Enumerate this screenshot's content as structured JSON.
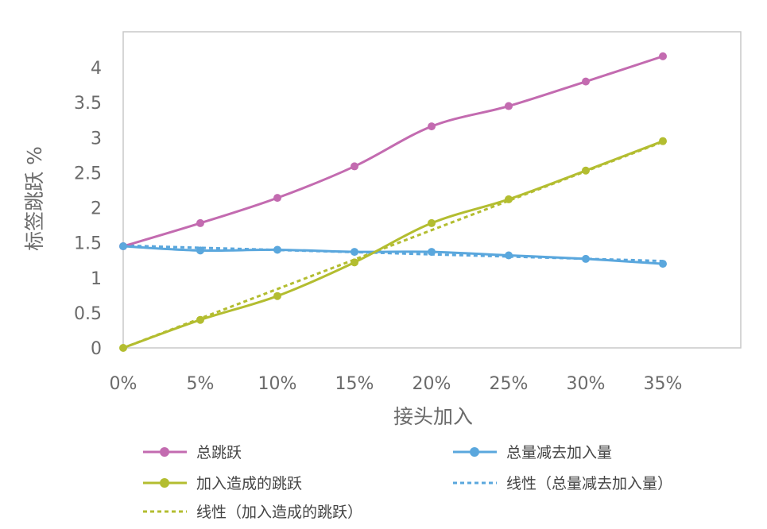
{
  "chart_data": {
    "type": "line",
    "title": "",
    "xlabel": "接头加入",
    "ylabel": "标签跳跃 %",
    "x": [
      "0%",
      "5%",
      "10%",
      "15%",
      "20%",
      "25%",
      "30%",
      "35%"
    ],
    "ylim": [
      0,
      4.5
    ],
    "yticks": [
      "0",
      "0.5",
      "1",
      "1.5",
      "2",
      "2.5",
      "3",
      "3.5",
      "4"
    ],
    "grid": false,
    "legend_position": "bottom",
    "series": [
      {
        "name": "总跳跃",
        "color": "#c36bb0",
        "style": "solid-marker",
        "values": [
          1.45,
          1.78,
          2.14,
          2.59,
          3.16,
          3.45,
          3.8,
          4.16
        ]
      },
      {
        "name": "总量减去加入量",
        "color": "#5aa7dd",
        "style": "solid-marker",
        "values": [
          1.45,
          1.39,
          1.4,
          1.37,
          1.37,
          1.32,
          1.27,
          1.2
        ]
      },
      {
        "name": "加入造成的跳跃",
        "color": "#b3bd30",
        "style": "solid-marker",
        "values": [
          0,
          0.4,
          0.74,
          1.22,
          1.78,
          2.12,
          2.53,
          2.95
        ]
      },
      {
        "name": "线性（总量减去加入量）",
        "color": "#5aa7dd",
        "style": "dotted",
        "values": [
          1.46,
          1.42,
          1.39,
          1.36,
          1.33,
          1.3,
          1.27,
          1.24
        ]
      },
      {
        "name": "线性（加入造成的跳跃）",
        "color": "#b3bd30",
        "style": "dotted",
        "values": [
          0,
          0.42,
          0.84,
          1.26,
          1.68,
          2.1,
          2.52,
          2.94
        ]
      }
    ]
  }
}
